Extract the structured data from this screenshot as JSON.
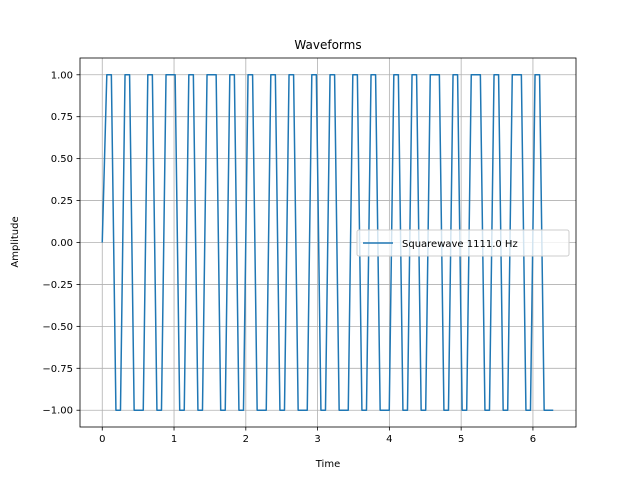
{
  "chart_data": {
    "type": "line",
    "title": "Waveforms",
    "xlabel": "Time",
    "ylabel": "Amplitude",
    "xlim": [
      -0.31,
      6.6
    ],
    "ylim": [
      -1.1,
      1.1
    ],
    "xticks": [
      0,
      1,
      2,
      3,
      4,
      5,
      6
    ],
    "xtick_labels": [
      "0",
      "1",
      "2",
      "3",
      "4",
      "5",
      "6"
    ],
    "yticks": [
      -1.0,
      -0.75,
      -0.5,
      -0.25,
      0.0,
      0.25,
      0.5,
      0.75,
      1.0
    ],
    "ytick_labels": [
      "−1.00",
      "−0.75",
      "−0.50",
      "−0.25",
      "0.00",
      "0.25",
      "0.50",
      "0.75",
      "1.00"
    ],
    "grid": true,
    "legend_position": "center-right",
    "series": [
      {
        "name": "Squarewave 1111.0 Hz",
        "color": "#1f77b4",
        "x": [
          0.0,
          0.0635,
          0.1269,
          0.1904,
          0.2539,
          0.3173,
          0.3808,
          0.4443,
          0.5077,
          0.5712,
          0.6347,
          0.6981,
          0.7616,
          0.8251,
          0.8885,
          0.952,
          1.0155,
          1.0789,
          1.1424,
          1.2059,
          1.2693,
          1.3328,
          1.3963,
          1.4597,
          1.5232,
          1.5867,
          1.6501,
          1.7136,
          1.7771,
          1.8405,
          1.904,
          1.9675,
          2.0309,
          2.0944,
          2.1579,
          2.2213,
          2.2848,
          2.3483,
          2.4117,
          2.4752,
          2.5387,
          2.6021,
          2.6656,
          2.7291,
          2.7925,
          2.856,
          2.9195,
          2.9829,
          3.0464,
          3.1099,
          3.1733,
          3.2368,
          3.3003,
          3.3637,
          3.4272,
          3.4907,
          3.5541,
          3.6176,
          3.6811,
          3.7445,
          3.808,
          3.8715,
          3.9349,
          3.9984,
          4.0619,
          4.1253,
          4.1888,
          4.2523,
          4.3157,
          4.3792,
          4.4427,
          4.5061,
          4.5696,
          4.6331,
          4.6965,
          4.76,
          4.8235,
          4.8869,
          4.9504,
          5.0139,
          5.0773,
          5.1408,
          5.2043,
          5.2677,
          5.3312,
          5.3947,
          5.4581,
          5.5216,
          5.5851,
          5.6485,
          5.712,
          5.7755,
          5.8389,
          5.9024,
          5.9659,
          6.0293,
          6.0928,
          6.1563,
          6.2197,
          6.2832
        ],
        "values": [
          0.0,
          1.0,
          1.0,
          -1.0,
          -1.0,
          1.0,
          1.0,
          -1.0,
          -1.0,
          -1.0,
          1.0,
          1.0,
          -1.0,
          -1.0,
          1.0,
          1.0,
          1.0,
          -1.0,
          -1.0,
          1.0,
          1.0,
          -1.0,
          -1.0,
          1.0,
          1.0,
          1.0,
          -1.0,
          -1.0,
          1.0,
          1.0,
          -1.0,
          -1.0,
          1.0,
          1.0,
          -1.0,
          -1.0,
          -1.0,
          1.0,
          1.0,
          -1.0,
          -1.0,
          1.0,
          1.0,
          -1.0,
          -1.0,
          -1.0,
          1.0,
          1.0,
          -1.0,
          -1.0,
          1.0,
          1.0,
          -1.0,
          -1.0,
          -1.0,
          1.0,
          1.0,
          -1.0,
          -1.0,
          1.0,
          1.0,
          -1.0,
          -1.0,
          -1.0,
          1.0,
          1.0,
          -1.0,
          -1.0,
          1.0,
          1.0,
          -1.0,
          -1.0,
          1.0,
          1.0,
          1.0,
          -1.0,
          -1.0,
          1.0,
          1.0,
          -1.0,
          -1.0,
          1.0,
          1.0,
          1.0,
          -1.0,
          -1.0,
          1.0,
          1.0,
          -1.0,
          -1.0,
          1.0,
          1.0,
          1.0,
          -1.0,
          -1.0,
          1.0,
          1.0,
          -1.0,
          -1.0,
          -1.0
        ]
      }
    ]
  }
}
